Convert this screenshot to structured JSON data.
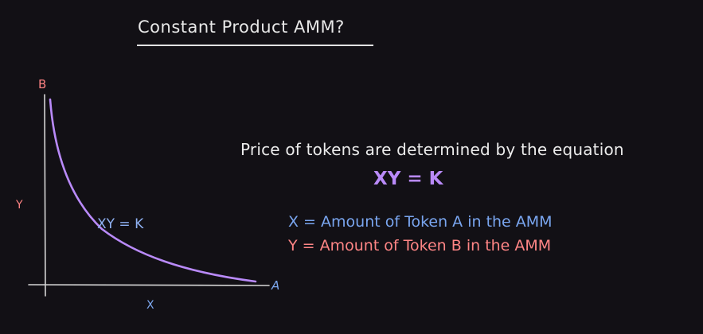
{
  "title": "Constant Product AMM?",
  "graph": {
    "y_axis_end_label": "B",
    "y_axis_label": "Y",
    "x_axis_end_label": "A",
    "x_axis_label": "X",
    "curve_label": "XY = K",
    "curve_color": "#b98af9"
  },
  "explanation": {
    "statement": "Price of tokens are determined by the equation",
    "equation": "XY = K",
    "definitions": [
      "X = Amount of Token A in the AMM",
      "Y = Amount of Token B in the AMM"
    ]
  },
  "colors": {
    "background": "#121015",
    "token_a": "#7aa6f0",
    "token_b": "#ff8585",
    "equation": "#b98af9"
  }
}
